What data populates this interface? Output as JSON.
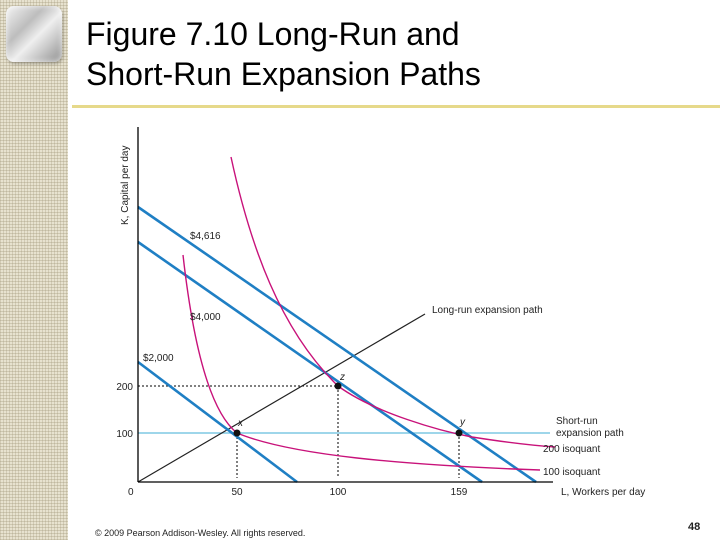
{
  "slide": {
    "title_line1": "Figure 7.10 Long-Run and",
    "title_line2": "Short-Run Expansion Paths",
    "footer": "© 2009 Pearson Addison-Wesley. All rights reserved.",
    "page_number": "48"
  },
  "diagram": {
    "y_axis_label": "K, Capital per day",
    "x_axis_label": "L, Workers per day",
    "origin_label": "0",
    "x_ticks": [
      "50",
      "100",
      "159"
    ],
    "y_ticks": [
      "100",
      "200"
    ],
    "isocost_labels": [
      "$4,616",
      "$4,000",
      "$2,000"
    ],
    "long_run_label": "Long-run expansion path",
    "short_run_label_line1": "Short-run",
    "short_run_label_line2": "expansion path",
    "isoquant_200_label": "200 isoquant",
    "isoquant_100_label": "100 isoquant",
    "point_labels": [
      "x",
      "y",
      "z"
    ],
    "colors": {
      "isocost": "#1f7fc4",
      "isoquant": "#c8127a",
      "short_run": "#7ec8e3",
      "long_run": "#222222",
      "axes": "#000000"
    }
  }
}
